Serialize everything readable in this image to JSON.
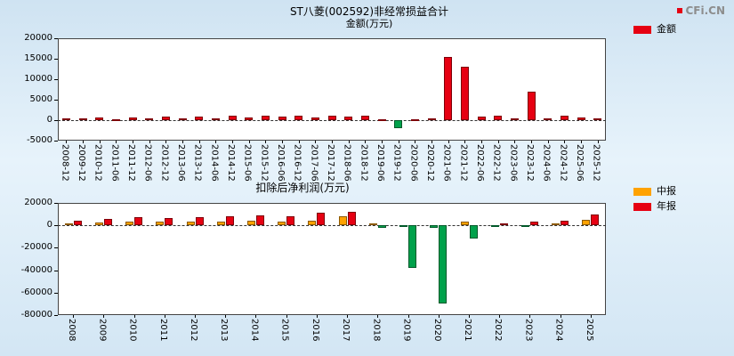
{
  "page": {
    "logo_text": "CFi.CN"
  },
  "chart_data": [
    {
      "type": "bar",
      "title": "ST八菱(002592)非经常损益合计",
      "subtitle": "金额(万元)",
      "legend": [
        {
          "label": "金额",
          "color": "#e60012"
        }
      ],
      "legend_position": "top-right",
      "grid": "zero-line-dashed",
      "categories": [
        "2008-12",
        "2009-12",
        "2010-12",
        "2011-06",
        "2011-12",
        "2012-06",
        "2012-12",
        "2013-06",
        "2013-12",
        "2014-06",
        "2014-12",
        "2015-06",
        "2015-12",
        "2016-06",
        "2016-12",
        "2017-06",
        "2017-12",
        "2018-06",
        "2018-12",
        "2019-06",
        "2019-12",
        "2020-06",
        "2020-12",
        "2021-06",
        "2021-12",
        "2022-06",
        "2022-12",
        "2023-06",
        "2023-12",
        "2024-06",
        "2024-12",
        "2025-06",
        "2025-12"
      ],
      "values": [
        500,
        400,
        600,
        300,
        700,
        400,
        800,
        400,
        900,
        500,
        1100,
        600,
        1000,
        800,
        1000,
        600,
        1100,
        800,
        1000,
        300,
        -2000,
        300,
        500,
        15500,
        13000,
        800,
        1200,
        400,
        7000,
        400,
        1200,
        600,
        400
      ],
      "ylim": [
        -5000,
        20000
      ],
      "yticks": [
        20000,
        15000,
        10000,
        5000,
        0,
        -5000
      ],
      "positive_color": "#e60012",
      "negative_color": "#00a14b"
    },
    {
      "type": "bar",
      "title": "扣除后净利润(万元)",
      "legend_position": "top-right",
      "grid": "zero-line-dashed",
      "categories": [
        "2008",
        "2009",
        "2010",
        "2011",
        "2012",
        "2013",
        "2014",
        "2015",
        "2016",
        "2017",
        "2018",
        "2019",
        "2020",
        "2021",
        "2022",
        "2023",
        "2024",
        "2025"
      ],
      "series": [
        {
          "name": "中报",
          "color": "#ffa200",
          "values": [
            2000,
            2500,
            3000,
            3500,
            3000,
            3500,
            4000,
            3500,
            4500,
            8000,
            1500,
            -1500,
            -2000,
            3000,
            -1000,
            -1500,
            2000,
            5000
          ]
        },
        {
          "name": "年报",
          "color": "#e60012",
          "values": [
            4000,
            5500,
            7000,
            6500,
            7500,
            8000,
            9000,
            8500,
            11000,
            12000,
            -2000,
            -38000,
            -70000,
            -12000,
            2000,
            3000,
            4000,
            10000
          ]
        }
      ],
      "ylim": [
        -80000,
        20000
      ],
      "yticks": [
        20000,
        0,
        -20000,
        -40000,
        -60000,
        -80000
      ],
      "negative_color": "#00a14b"
    }
  ]
}
